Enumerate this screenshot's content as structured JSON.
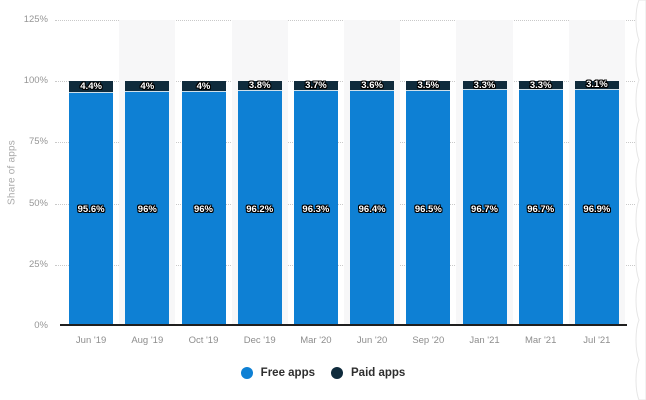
{
  "chart_data": {
    "type": "bar",
    "stacked": true,
    "categories": [
      "Jun '19",
      "Aug '19",
      "Oct '19",
      "Dec '19",
      "Mar '20",
      "Jun '20",
      "Sep '20",
      "Jan '21",
      "Mar '21",
      "Jul '21"
    ],
    "series": [
      {
        "name": "Free apps",
        "color": "#0e80d4",
        "values": [
          95.6,
          96,
          96,
          96.2,
          96.3,
          96.4,
          96.5,
          96.7,
          96.7,
          96.9
        ],
        "labels": [
          "95.6%",
          "96%",
          "96%",
          "96.2%",
          "96.3%",
          "96.4%",
          "96.5%",
          "96.7%",
          "96.7%",
          "96.9%"
        ]
      },
      {
        "name": "Paid apps",
        "color": "#0f2b3c",
        "values": [
          4.4,
          4,
          4,
          3.8,
          3.7,
          3.6,
          3.5,
          3.3,
          3.3,
          3.1
        ],
        "labels": [
          "4.4%",
          "4%",
          "4%",
          "3.8%",
          "3.7%",
          "3.6%",
          "3.5%",
          "3.3%",
          "3.3%",
          "3.1%"
        ]
      }
    ],
    "ylabel": "Share of apps",
    "xlabel": "",
    "title": "",
    "ylim": [
      0,
      125
    ],
    "y_axis": {
      "ticks": [
        {
          "label": "125%",
          "value": 125
        },
        {
          "label": "100%",
          "value": 100
        },
        {
          "label": "75%",
          "value": 75
        },
        {
          "label": "50%",
          "value": 50
        },
        {
          "label": "25%",
          "value": 25
        },
        {
          "label": "0%",
          "value": 0
        }
      ]
    },
    "grid": "dotted-horizontal",
    "column_band_color": "#f7f7f8",
    "legend_position": "bottom"
  },
  "legend": {
    "items": [
      {
        "label": "Free apps",
        "color": "#0e80d4"
      },
      {
        "label": "Paid apps",
        "color": "#0f2b3c"
      }
    ]
  }
}
